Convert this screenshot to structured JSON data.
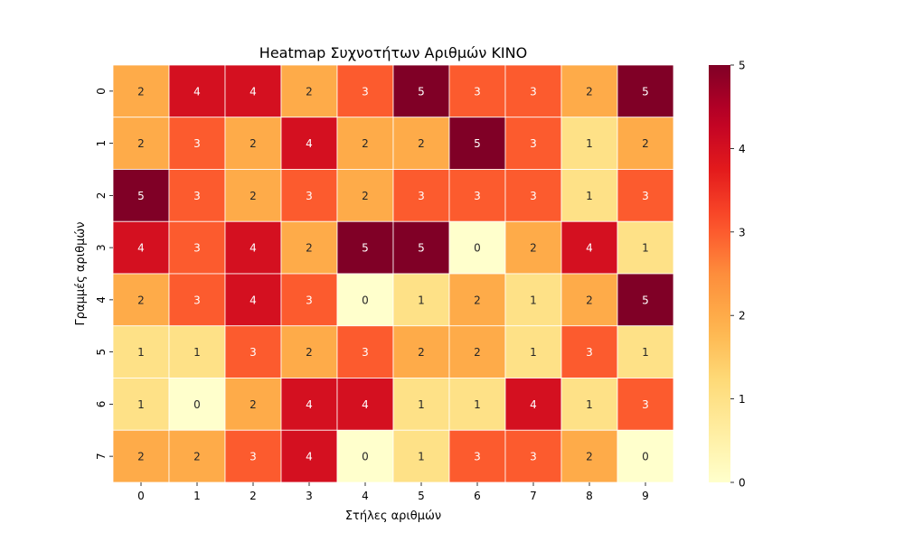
{
  "chart_data": {
    "type": "heatmap",
    "title": "Heatmap Συχνοτήτων Αριθμών KINO",
    "xlabel": "Στήλες αριθμών",
    "ylabel": "Γραμμές αριθμών",
    "x_categories": [
      "0",
      "1",
      "2",
      "3",
      "4",
      "5",
      "6",
      "7",
      "8",
      "9"
    ],
    "y_categories": [
      "0",
      "1",
      "2",
      "3",
      "4",
      "5",
      "6",
      "7"
    ],
    "values": [
      [
        2,
        4,
        4,
        2,
        3,
        5,
        3,
        3,
        2,
        5
      ],
      [
        2,
        3,
        2,
        4,
        2,
        2,
        5,
        3,
        1,
        2
      ],
      [
        5,
        3,
        2,
        3,
        2,
        3,
        3,
        3,
        1,
        3
      ],
      [
        4,
        3,
        4,
        2,
        5,
        5,
        0,
        2,
        4,
        1
      ],
      [
        2,
        3,
        4,
        3,
        0,
        1,
        2,
        1,
        2,
        5
      ],
      [
        1,
        1,
        3,
        2,
        3,
        2,
        2,
        1,
        3,
        1
      ],
      [
        1,
        0,
        2,
        4,
        4,
        1,
        1,
        4,
        1,
        3
      ],
      [
        2,
        2,
        3,
        4,
        0,
        1,
        3,
        3,
        2,
        0
      ]
    ],
    "colormap": "YlOrRd",
    "colorbar": {
      "min": 0,
      "max": 5,
      "ticks": [
        "0",
        "1",
        "2",
        "3",
        "4",
        "5"
      ]
    },
    "annotated": true,
    "cell_separator_color": "#ffffff"
  }
}
